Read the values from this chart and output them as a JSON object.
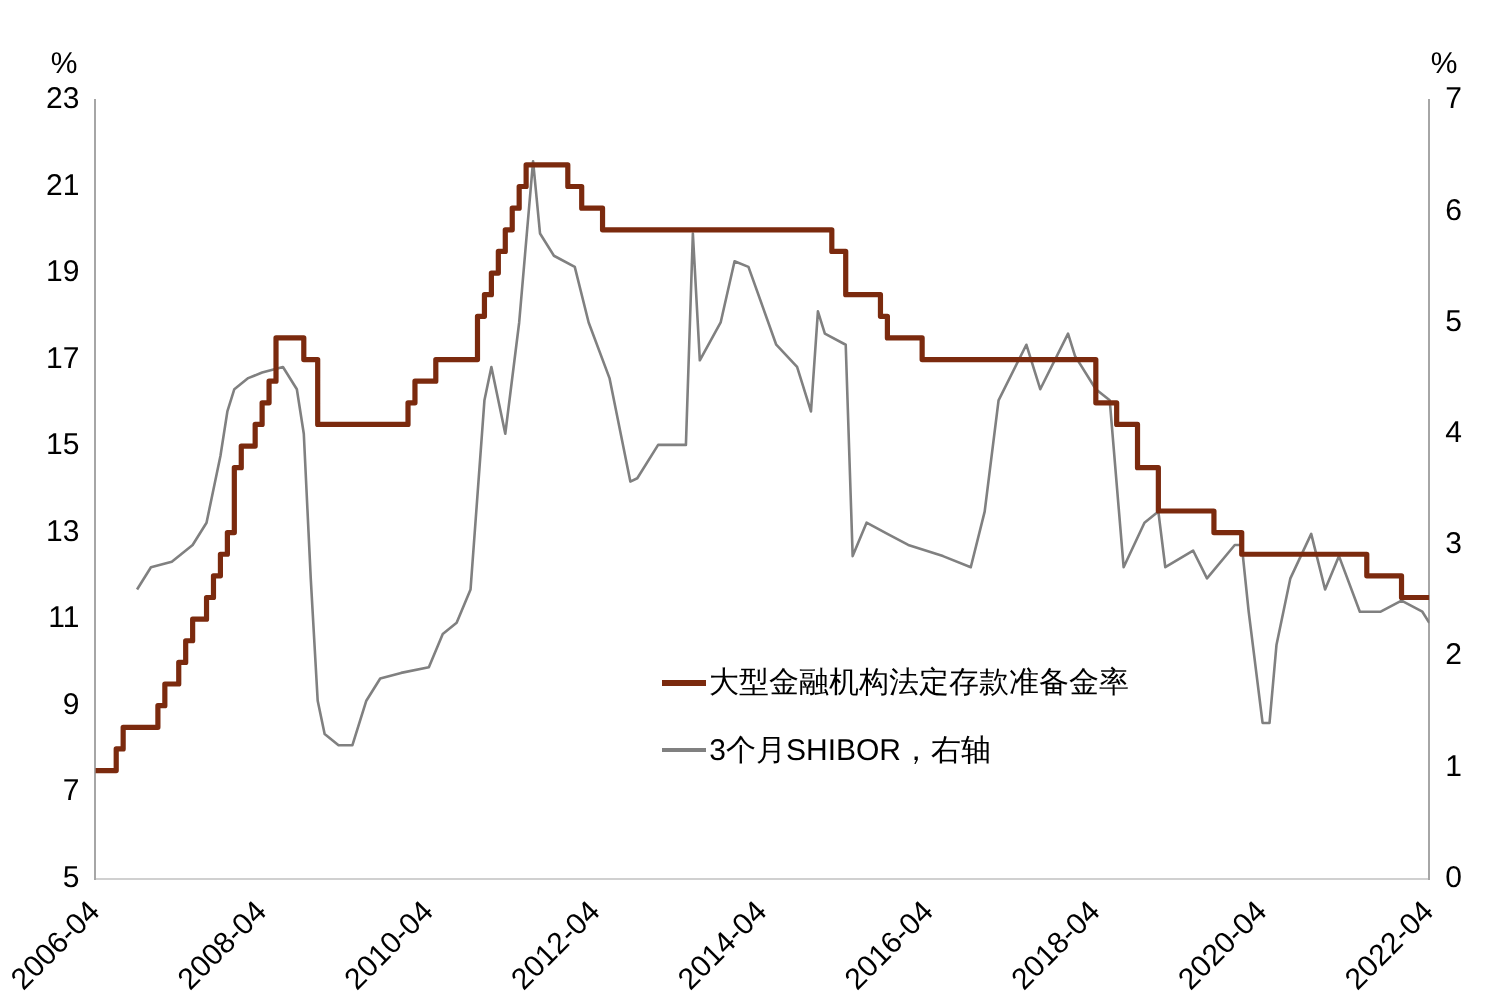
{
  "chart_data": {
    "type": "step",
    "ylabel": "%",
    "y2label": "%",
    "xlim": [
      "2006-04",
      "2022-04"
    ],
    "xticks": [
      "2006-04",
      "2008-04",
      "2010-04",
      "2012-04",
      "2014-04",
      "2016-04",
      "2018-04",
      "2020-04",
      "2022-04"
    ],
    "ylim": [
      5,
      23
    ],
    "yticks": [
      5,
      7,
      9,
      11,
      13,
      15,
      17,
      19,
      21,
      23
    ],
    "y2lim": [
      0,
      7
    ],
    "y2ticks": [
      0,
      1,
      2,
      3,
      4,
      5,
      6,
      7
    ],
    "grid": false,
    "legend": "bottom right",
    "marker": "none",
    "series": [
      {
        "name": "大型金融机构法定存款准备金率",
        "color": "#7b2a0e",
        "x": [
          "2006-04",
          "2006-07",
          "2006-08",
          "2007-01",
          "2007-02",
          "2007-04",
          "2007-05",
          "2007-06",
          "2007-08",
          "2007-09",
          "2007-10",
          "2007-11",
          "2007-12",
          "2008-01",
          "2008-03",
          "2008-04",
          "2008-05",
          "2008-06",
          "2008-10",
          "2008-12",
          "2010-01",
          "2010-02",
          "2010-05",
          "2010-11",
          "2010-12",
          "2011-01",
          "2011-02",
          "2011-03",
          "2011-04",
          "2011-05",
          "2011-06",
          "2011-12",
          "2012-02",
          "2012-05",
          "2015-02",
          "2015-04",
          "2015-09",
          "2015-10",
          "2016-03",
          "2018-04",
          "2018-07",
          "2018-10",
          "2019-01",
          "2019-09",
          "2020-01",
          "2021-07",
          "2021-12",
          "2022-04"
        ],
        "values": [
          7.5,
          8,
          8.5,
          9,
          9.5,
          10,
          10.5,
          11,
          11.5,
          12,
          12.5,
          13,
          14.5,
          15,
          15.5,
          16,
          16.5,
          17.5,
          17,
          15.5,
          16,
          16.5,
          17,
          18,
          18.5,
          19,
          19.5,
          20,
          20.5,
          21,
          21.5,
          21,
          20.5,
          20,
          19.5,
          18.5,
          18,
          17.5,
          17,
          16,
          15.5,
          14.5,
          13.5,
          13,
          12.5,
          12,
          11.5,
          11.5
        ]
      },
      {
        "name": "3个月SHIBOR，右轴",
        "type": "line",
        "axis": "y2",
        "color": "#808080",
        "x": [
          "2006-10",
          "2006-12",
          "2007-03",
          "2007-06",
          "2007-08",
          "2007-10",
          "2007-11",
          "2007-12",
          "2008-02",
          "2008-04",
          "2008-07",
          "2008-09",
          "2008-10",
          "2008-11",
          "2008-12",
          "2009-01",
          "2009-03",
          "2009-05",
          "2009-07",
          "2009-09",
          "2009-12",
          "2010-04",
          "2010-06",
          "2010-08",
          "2010-10",
          "2010-12",
          "2011-01",
          "2011-03",
          "2011-05",
          "2011-07",
          "2011-08",
          "2011-10",
          "2012-01",
          "2012-03",
          "2012-06",
          "2012-09",
          "2012-10",
          "2013-01",
          "2013-05",
          "2013-06",
          "2013-07",
          "2013-10",
          "2013-12",
          "2014-02",
          "2014-06",
          "2014-09",
          "2014-11",
          "2014-12",
          "2015-01",
          "2015-04",
          "2015-05",
          "2015-07",
          "2015-10",
          "2016-01",
          "2016-06",
          "2016-10",
          "2016-12",
          "2017-02",
          "2017-06",
          "2017-08",
          "2017-12",
          "2018-01",
          "2018-04",
          "2018-06",
          "2018-08",
          "2018-11",
          "2019-01",
          "2019-02",
          "2019-06",
          "2019-08",
          "2019-12",
          "2020-01",
          "2020-02",
          "2020-04",
          "2020-05",
          "2020-06",
          "2020-08",
          "2020-11",
          "2021-01",
          "2021-03",
          "2021-06",
          "2021-09",
          "2021-12",
          "2022-03",
          "2022-04"
        ],
        "values": [
          2.6,
          2.8,
          2.85,
          3.0,
          3.2,
          3.8,
          4.2,
          4.4,
          4.5,
          4.55,
          4.6,
          4.4,
          4.0,
          2.7,
          1.6,
          1.3,
          1.2,
          1.2,
          1.6,
          1.8,
          1.85,
          1.9,
          2.2,
          2.3,
          2.6,
          4.3,
          4.6,
          4.0,
          5.0,
          6.45,
          5.8,
          5.6,
          5.5,
          5.0,
          4.5,
          3.57,
          3.6,
          3.9,
          3.9,
          5.8,
          4.66,
          5.0,
          5.55,
          5.5,
          4.8,
          4.6,
          4.2,
          5.1,
          4.9,
          4.8,
          2.9,
          3.2,
          3.1,
          3.0,
          2.9,
          2.8,
          3.3,
          4.3,
          4.8,
          4.4,
          4.9,
          4.7,
          4.4,
          4.3,
          2.8,
          3.2,
          3.3,
          2.8,
          2.95,
          2.7,
          3.0,
          3.0,
          2.4,
          1.4,
          1.4,
          2.1,
          2.7,
          3.1,
          2.6,
          2.9,
          2.4,
          2.4,
          2.5,
          2.4,
          2.3
        ]
      }
    ]
  }
}
